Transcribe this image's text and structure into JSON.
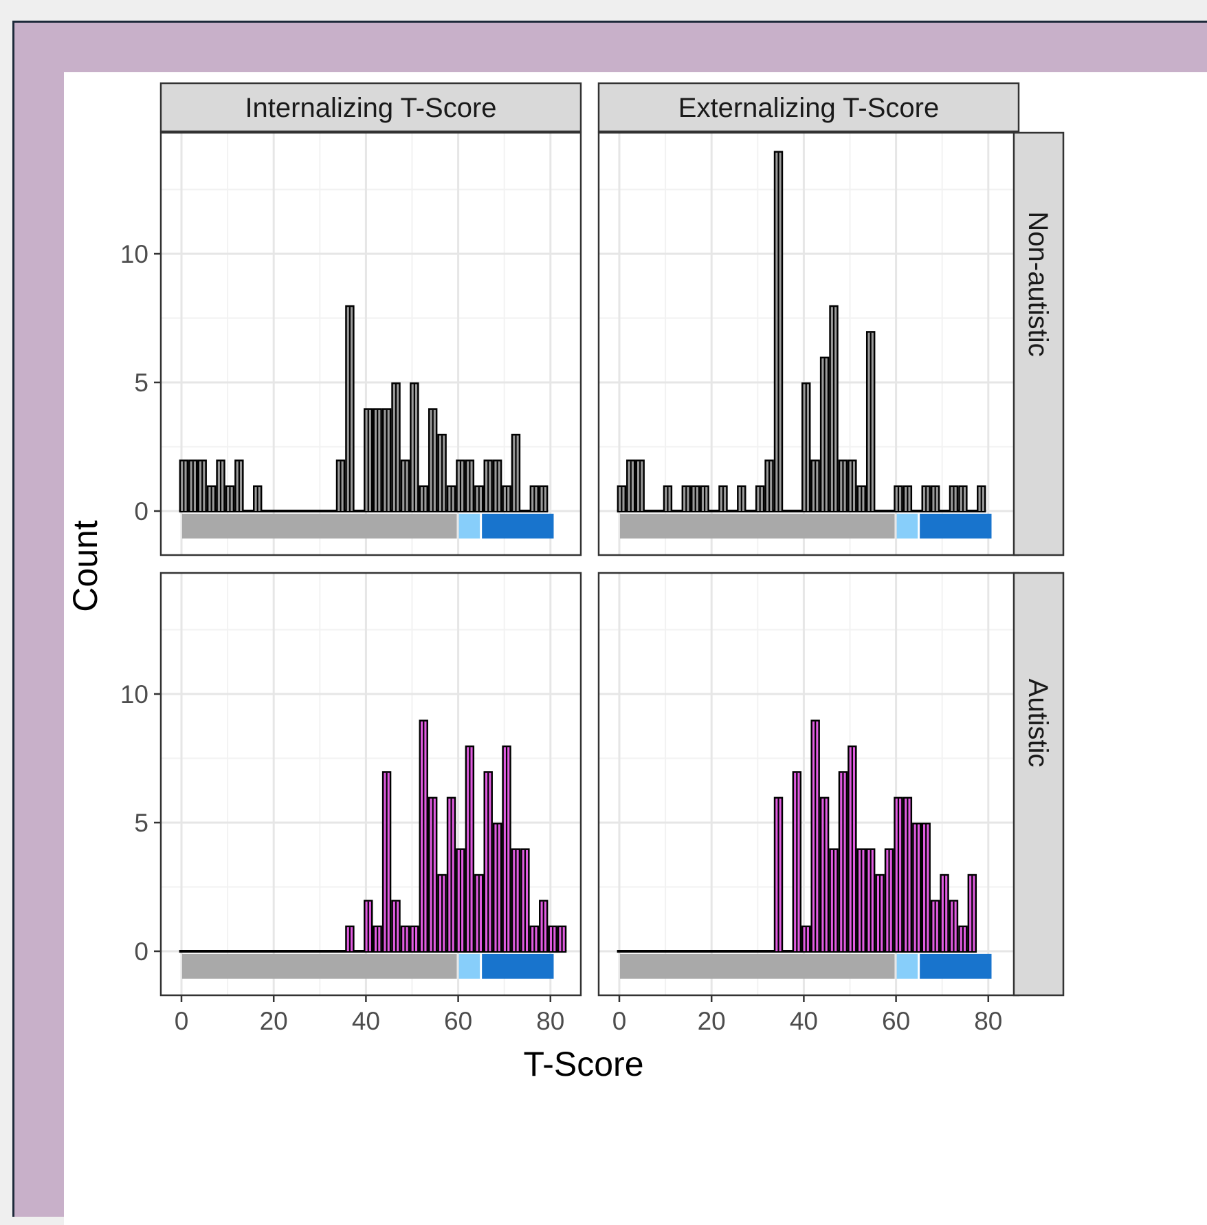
{
  "chart_data": {
    "type": "bar",
    "subtype": "faceted histogram",
    "xlabel": "T-Score",
    "ylabel": "Count",
    "xlim": [
      0,
      85
    ],
    "ylim": [
      -1.5,
      14.5
    ],
    "x_ticks": [
      0,
      20,
      40,
      60,
      80
    ],
    "y_ticks": [
      0,
      5,
      10
    ],
    "grid": true,
    "legend": "none",
    "bin_width": 2,
    "columns": [
      "Internalizing T-Score",
      "Externalizing T-Score"
    ],
    "rows": [
      "Non-autistic",
      "Autistic"
    ],
    "colors": {
      "Non-autistic": "#9a9a9a",
      "Autistic": "#e05ce0",
      "bar_outline": "#000000",
      "range_normal": "#a9a9a9",
      "range_borderline": "#87cefa",
      "range_clinical": "#1874cd"
    },
    "reference_ranges": [
      {
        "from": 0,
        "to": 60,
        "color": "#a9a9a9"
      },
      {
        "from": 60,
        "to": 65,
        "color": "#87cefa"
      },
      {
        "from": 65,
        "to": 81,
        "color": "#1874cd"
      }
    ],
    "panels": [
      {
        "column": "Internalizing T-Score",
        "row": "Non-autistic",
        "bin_starts": [
          -0.5,
          1.5,
          3.5,
          5.5,
          7.5,
          9.5,
          11.5,
          13.5,
          15.5,
          17.5,
          19.5,
          21.5,
          23.5,
          25.5,
          27.5,
          29.5,
          31.5,
          33.5,
          35.5,
          37.5,
          39.5,
          41.5,
          43.5,
          45.5,
          47.5,
          49.5,
          51.5,
          53.5,
          55.5,
          57.5,
          59.5,
          61.5,
          63.5,
          65.5,
          67.5,
          69.5,
          71.5,
          73.5,
          75.5,
          77.5
        ],
        "counts": [
          2,
          2,
          2,
          1,
          2,
          1,
          2,
          0,
          1,
          0,
          0,
          0,
          0,
          0,
          0,
          0,
          0,
          2,
          8,
          0,
          4,
          4,
          4,
          5,
          2,
          5,
          1,
          4,
          3,
          1,
          2,
          2,
          1,
          2,
          2,
          1,
          3,
          0,
          1,
          1
        ]
      },
      {
        "column": "Externalizing T-Score",
        "row": "Non-autistic",
        "bin_starts": [
          -0.5,
          1.5,
          3.5,
          5.5,
          7.5,
          9.5,
          11.5,
          13.5,
          15.5,
          17.5,
          19.5,
          21.5,
          23.5,
          25.5,
          27.5,
          29.5,
          31.5,
          33.5,
          35.5,
          37.5,
          39.5,
          41.5,
          43.5,
          45.5,
          47.5,
          49.5,
          51.5,
          53.5,
          55.5,
          57.5,
          59.5,
          61.5,
          63.5,
          65.5,
          67.5,
          69.5,
          71.5,
          73.5,
          75.5,
          77.5
        ],
        "counts": [
          1,
          2,
          2,
          0,
          0,
          1,
          0,
          1,
          1,
          1,
          0,
          1,
          0,
          1,
          0,
          1,
          2,
          14,
          0,
          0,
          5,
          2,
          6,
          8,
          2,
          2,
          1,
          7,
          0,
          0,
          1,
          1,
          0,
          1,
          1,
          0,
          1,
          1,
          0,
          1
        ]
      },
      {
        "column": "Internalizing T-Score",
        "row": "Autistic",
        "bin_starts": [
          -0.5,
          1.5,
          3.5,
          5.5,
          7.5,
          9.5,
          11.5,
          13.5,
          15.5,
          17.5,
          19.5,
          21.5,
          23.5,
          25.5,
          27.5,
          29.5,
          31.5,
          33.5,
          35.5,
          37.5,
          39.5,
          41.5,
          43.5,
          45.5,
          47.5,
          49.5,
          51.5,
          53.5,
          55.5,
          57.5,
          59.5,
          61.5,
          63.5,
          65.5,
          67.5,
          69.5,
          71.5,
          73.5,
          75.5,
          77.5,
          79.5,
          81.5
        ],
        "counts": [
          0,
          0,
          0,
          0,
          0,
          0,
          0,
          0,
          0,
          0,
          0,
          0,
          0,
          0,
          0,
          0,
          0,
          0,
          1,
          0,
          2,
          1,
          7,
          2,
          1,
          1,
          9,
          6,
          3,
          6,
          4,
          8,
          3,
          7,
          5,
          8,
          4,
          4,
          1,
          2,
          1,
          1
        ]
      },
      {
        "column": "Externalizing T-Score",
        "row": "Autistic",
        "bin_starts": [
          -0.5,
          1.5,
          3.5,
          5.5,
          7.5,
          9.5,
          11.5,
          13.5,
          15.5,
          17.5,
          19.5,
          21.5,
          23.5,
          25.5,
          27.5,
          29.5,
          31.5,
          33.5,
          35.5,
          37.5,
          39.5,
          41.5,
          43.5,
          45.5,
          47.5,
          49.5,
          51.5,
          53.5,
          55.5,
          57.5,
          59.5,
          61.5,
          63.5,
          65.5,
          67.5,
          69.5,
          71.5,
          73.5,
          75.5
        ],
        "counts": [
          0,
          0,
          0,
          0,
          0,
          0,
          0,
          0,
          0,
          0,
          0,
          0,
          0,
          0,
          0,
          0,
          0,
          6,
          0,
          7,
          1,
          9,
          6,
          4,
          7,
          8,
          4,
          4,
          3,
          4,
          6,
          6,
          5,
          5,
          2,
          3,
          2,
          1,
          3
        ]
      }
    ]
  }
}
